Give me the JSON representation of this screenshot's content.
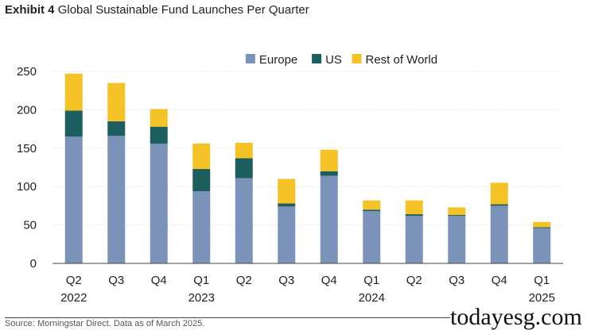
{
  "header": {
    "exhibit": "Exhibit 4",
    "title": "Global Sustainable Fund Launches Per Quarter"
  },
  "footer": {
    "source": "Source: Morningstar Direct. Data as of March 2025.",
    "watermark": "todayesg.com"
  },
  "colors": {
    "Europe": "#7b93b8",
    "US": "#1d5f5f",
    "Rest of World": "#f5c226",
    "grid": "#d9d9d9",
    "axis": "#444444",
    "text": "#222222"
  },
  "chart_data": {
    "type": "bar",
    "stacked": true,
    "title": "Global Sustainable Fund Launches Per Quarter",
    "xlabel": "",
    "ylabel": "",
    "ylim": [
      0,
      250
    ],
    "yticks": [
      0,
      50,
      100,
      150,
      200,
      250
    ],
    "grid": true,
    "legend_position": "top-center",
    "categories": [
      "Q2",
      "Q3",
      "Q4",
      "Q1",
      "Q2",
      "Q3",
      "Q4",
      "Q1",
      "Q2",
      "Q3",
      "Q4",
      "Q1"
    ],
    "year_labels": [
      "2022",
      "",
      "",
      "2023",
      "",
      "",
      "",
      "2024",
      "",
      "",
      "",
      "2025"
    ],
    "series": [
      {
        "name": "Europe",
        "values": [
          165,
          166,
          156,
          94,
          111,
          74,
          114,
          68,
          62,
          62,
          75,
          46
        ]
      },
      {
        "name": "US",
        "values": [
          34,
          19,
          22,
          29,
          26,
          4,
          6,
          2,
          2,
          1,
          2,
          1
        ]
      },
      {
        "name": "Rest of World",
        "values": [
          48,
          50,
          23,
          33,
          20,
          32,
          28,
          12,
          18,
          10,
          28,
          7
        ]
      }
    ]
  }
}
